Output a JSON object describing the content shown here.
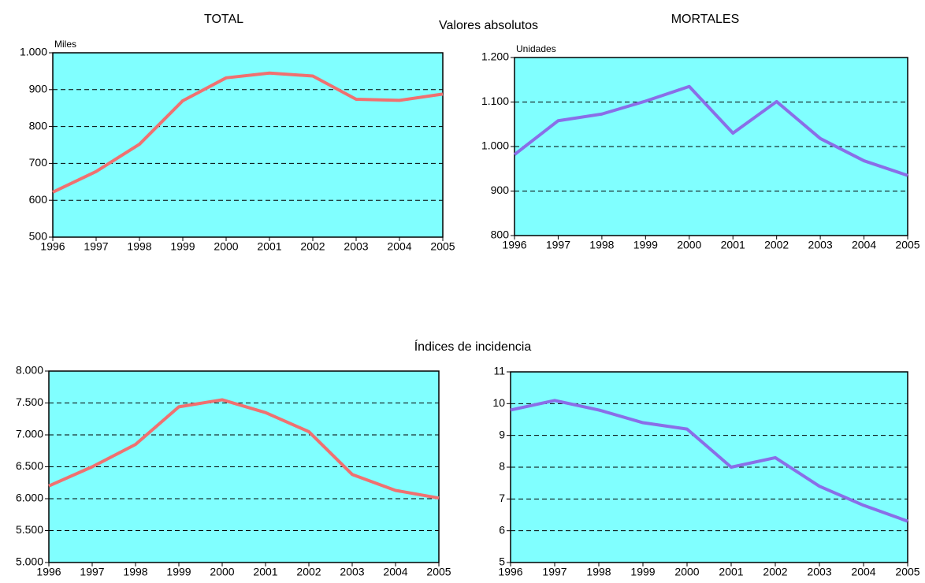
{
  "section_titles": [
    "Valores absolutos",
    "Índices de incidencia"
  ],
  "chart_data": [
    {
      "type": "line",
      "title": "TOTAL",
      "y_unit": "Miles",
      "x": [
        1996,
        1997,
        1998,
        1999,
        2000,
        2001,
        2002,
        2003,
        2004,
        2005
      ],
      "xlim": [
        1996,
        2005
      ],
      "xticks": [
        1996,
        1997,
        1998,
        1999,
        2000,
        2001,
        2002,
        2003,
        2004,
        2005
      ],
      "values": [
        622,
        678,
        752,
        870,
        932,
        945,
        937,
        874,
        871,
        888
      ],
      "color": "#f07070",
      "ylim": [
        500,
        1000
      ],
      "yticks": [
        500,
        600,
        700,
        800,
        900,
        {
          "value": 1000,
          "label": "1.000"
        }
      ],
      "grid": true
    },
    {
      "type": "line",
      "title": "MORTALES",
      "y_unit": "Unidades",
      "x": [
        1996,
        1997,
        1998,
        1999,
        2000,
        2001,
        2002,
        2003,
        2004,
        2005
      ],
      "xlim": [
        1996,
        2005
      ],
      "xticks": [
        1996,
        1997,
        1998,
        1999,
        2000,
        2001,
        2002,
        2003,
        2004,
        2005
      ],
      "values": [
        982,
        1058,
        1073,
        1102,
        1135,
        1030,
        1101,
        1018,
        968,
        935
      ],
      "color": "#8a6ee8",
      "ylim": [
        800,
        1200
      ],
      "yticks": [
        800,
        900,
        {
          "value": 1000,
          "label": "1.000"
        },
        {
          "value": 1100,
          "label": "1.100"
        },
        {
          "value": 1200,
          "label": "1.200"
        }
      ],
      "grid": true
    },
    {
      "type": "line",
      "x": [
        1996,
        1997,
        1998,
        1999,
        2000,
        2001,
        2002,
        2003,
        2004,
        2005
      ],
      "xlim": [
        1996,
        2005
      ],
      "xticks": [
        1996,
        1997,
        1998,
        1999,
        2000,
        2001,
        2002,
        2003,
        2004,
        2005
      ],
      "values": [
        6200,
        6500,
        6850,
        7440,
        7550,
        7350,
        7050,
        6380,
        6130,
        6010
      ],
      "color": "#f07070",
      "ylim": [
        5000,
        8000
      ],
      "yticks": [
        {
          "value": 5000,
          "label": "5.000"
        },
        {
          "value": 5500,
          "label": "5.500"
        },
        {
          "value": 6000,
          "label": "6.000"
        },
        {
          "value": 6500,
          "label": "6.500"
        },
        {
          "value": 7000,
          "label": "7.000"
        },
        {
          "value": 7500,
          "label": "7.500"
        },
        {
          "value": 8000,
          "label": "8.000"
        }
      ],
      "grid": true
    },
    {
      "type": "line",
      "x": [
        1996,
        1997,
        1998,
        1999,
        2000,
        2001,
        2002,
        2003,
        2004,
        2005
      ],
      "xlim": [
        1996,
        2005
      ],
      "xticks": [
        1996,
        1997,
        1998,
        1999,
        2000,
        2001,
        2002,
        2003,
        2004,
        2005
      ],
      "values": [
        9.8,
        10.1,
        9.8,
        9.4,
        9.2,
        8.0,
        8.3,
        7.4,
        6.8,
        6.3
      ],
      "color": "#8a6ee8",
      "ylim": [
        5,
        11
      ],
      "yticks": [
        5,
        6,
        7,
        8,
        9,
        10,
        11
      ],
      "grid": true
    }
  ]
}
